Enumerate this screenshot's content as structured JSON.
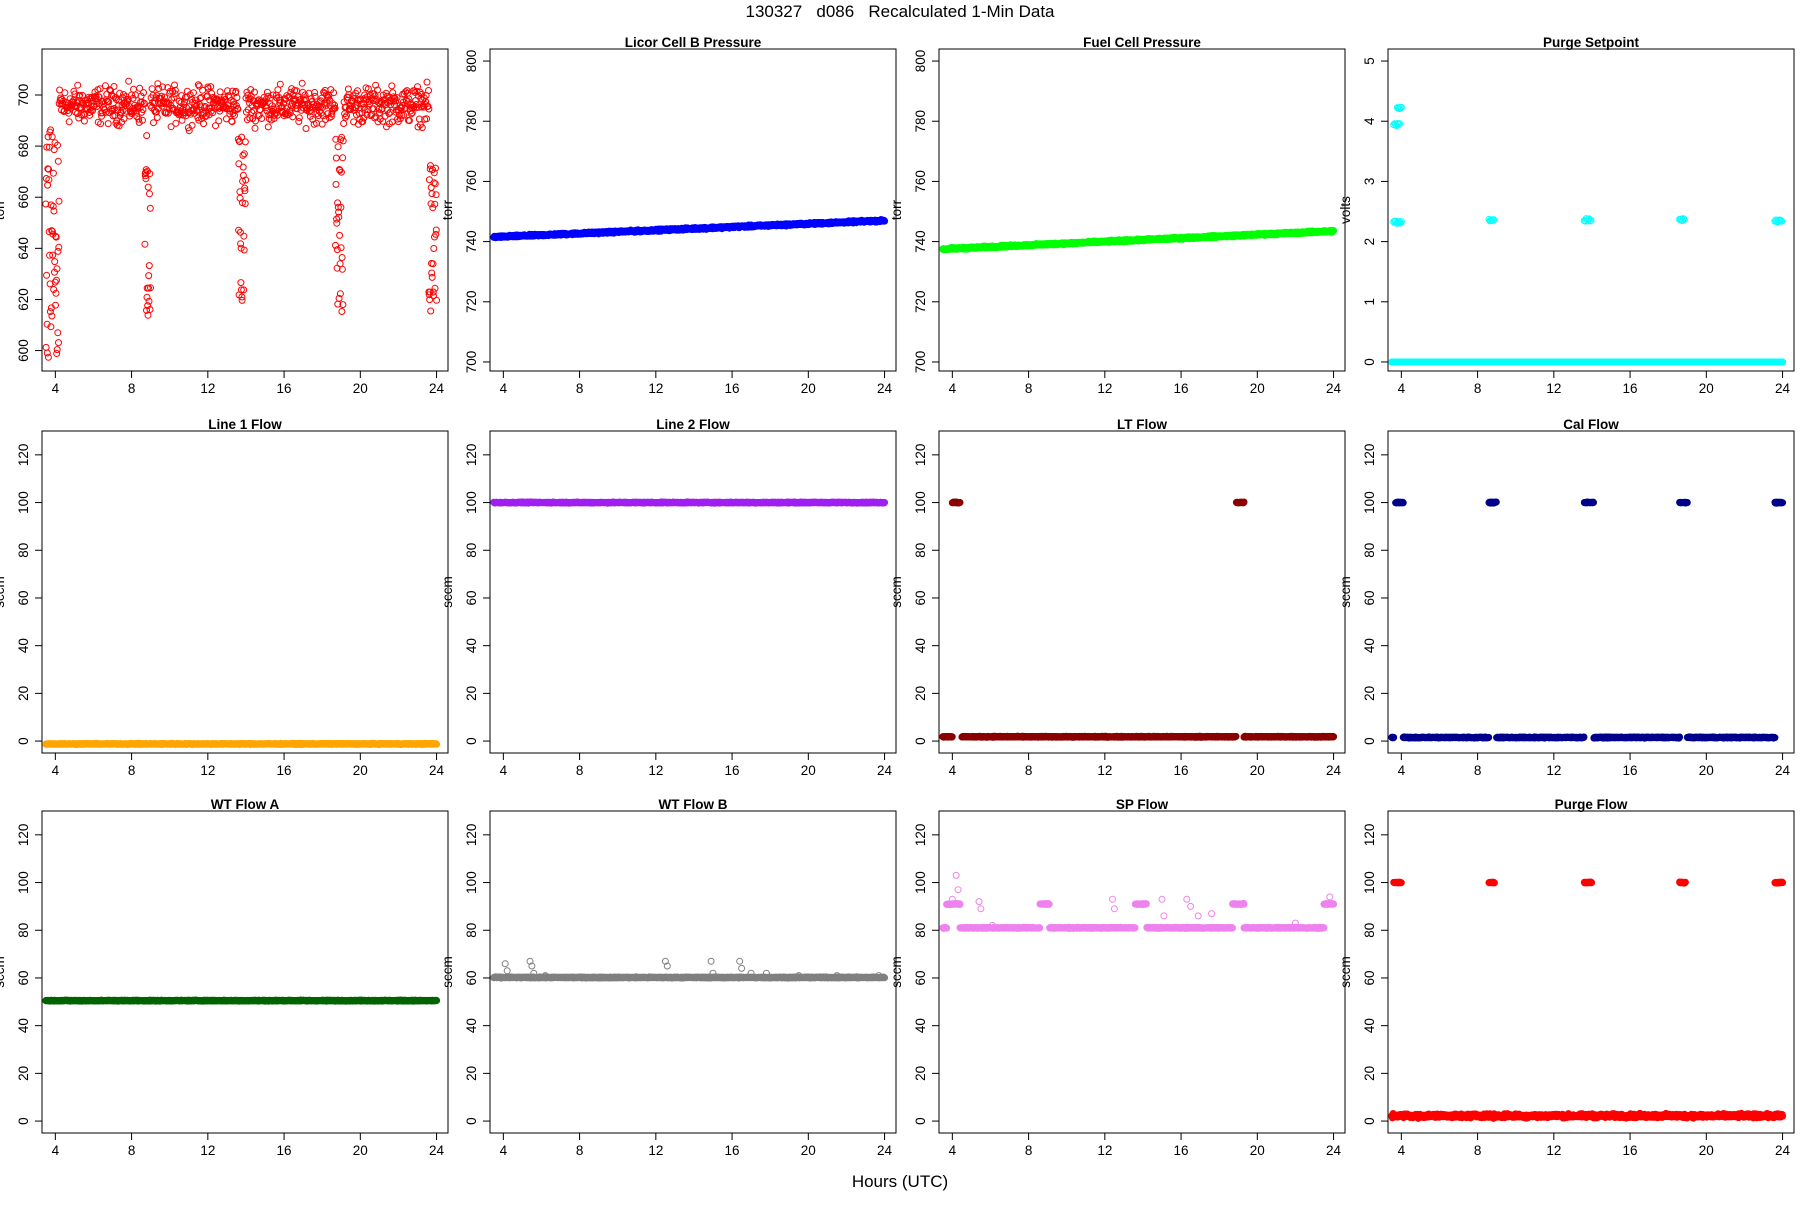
{
  "figure": {
    "title": "130327   d086   Recalculated 1-Min Data",
    "xlabel": "Hours (UTC)"
  },
  "chart_data": [
    {
      "type": "scatter",
      "title": "Fridge Pressure",
      "ylabel": "torr",
      "color": "#ff0000",
      "filled": false,
      "xlim": [
        3.3,
        24.6
      ],
      "ylim": [
        592,
        718
      ],
      "xticks": [
        4,
        8,
        12,
        16,
        20,
        24
      ],
      "yticks": [
        600,
        620,
        640,
        660,
        680,
        700
      ],
      "bands": [
        {
          "x0": 3.9,
          "x1": 24.0,
          "center": 696,
          "spread": 7
        }
      ],
      "drops": [
        {
          "x0": 3.5,
          "x1": 4.2,
          "ymin": 596,
          "ymax": 690
        },
        {
          "x0": 8.7,
          "x1": 9.0,
          "ymin": 613,
          "ymax": 685
        },
        {
          "x0": 13.6,
          "x1": 14.0,
          "ymin": 615,
          "ymax": 685
        },
        {
          "x0": 18.7,
          "x1": 19.1,
          "ymin": 615,
          "ymax": 685
        },
        {
          "x0": 23.6,
          "x1": 24.0,
          "ymin": 615,
          "ymax": 673
        }
      ]
    },
    {
      "type": "scatter",
      "title": "Licor Cell B Pressure",
      "ylabel": "torr",
      "color": "#0000ff",
      "filled": true,
      "xlim": [
        3.3,
        24.6
      ],
      "ylim": [
        697,
        804
      ],
      "xticks": [
        4,
        8,
        12,
        16,
        20,
        24
      ],
      "yticks": [
        700,
        720,
        740,
        760,
        780,
        800
      ],
      "trend": {
        "x0": 3.5,
        "x1": 24.0,
        "y0": 741.5,
        "y1": 747
      }
    },
    {
      "type": "scatter",
      "title": "Fuel Cell Pressure",
      "ylabel": "torr",
      "color": "#00ff00",
      "filled": true,
      "xlim": [
        3.3,
        24.6
      ],
      "ylim": [
        697,
        804
      ],
      "xticks": [
        4,
        8,
        12,
        16,
        20,
        24
      ],
      "yticks": [
        700,
        720,
        740,
        760,
        780,
        800
      ],
      "trend": {
        "x0": 3.5,
        "x1": 24.0,
        "y0": 737.5,
        "y1": 743.5
      }
    },
    {
      "type": "scatter",
      "title": "Purge Setpoint",
      "ylabel": "volts",
      "color": "#00ffff",
      "filled": false,
      "xlim": [
        3.3,
        24.6
      ],
      "ylim": [
        -0.15,
        5.2
      ],
      "xticks": [
        4,
        8,
        12,
        16,
        20,
        24
      ],
      "yticks": [
        0,
        1,
        2,
        3,
        4,
        5
      ],
      "baseline": {
        "x0": 3.5,
        "x1": 24.0,
        "y": 0.0
      },
      "clusters": [
        {
          "x0": 3.6,
          "x1": 4.0,
          "y": 2.32
        },
        {
          "x0": 3.6,
          "x1": 3.9,
          "y": 3.95
        },
        {
          "x0": 3.8,
          "x1": 4.0,
          "y": 4.22
        },
        {
          "x0": 8.6,
          "x1": 8.9,
          "y": 2.35
        },
        {
          "x0": 13.6,
          "x1": 14.0,
          "y": 2.36
        },
        {
          "x0": 18.6,
          "x1": 18.9,
          "y": 2.36
        },
        {
          "x0": 23.6,
          "x1": 24.0,
          "y": 2.35
        }
      ]
    },
    {
      "type": "scatter",
      "title": "Line 1 Flow",
      "ylabel": "sccm",
      "color": "#ffa500",
      "filled": true,
      "xlim": [
        3.3,
        24.6
      ],
      "ylim": [
        -5,
        130
      ],
      "xticks": [
        4,
        8,
        12,
        16,
        20,
        24
      ],
      "yticks": [
        0,
        20,
        40,
        60,
        80,
        100,
        120
      ],
      "segments": [
        {
          "x0": 3.5,
          "x1": 24.0,
          "y": -1.2
        }
      ]
    },
    {
      "type": "scatter",
      "title": "Line 2 Flow",
      "ylabel": "sccm",
      "color": "#a020f0",
      "filled": true,
      "xlim": [
        3.3,
        24.6
      ],
      "ylim": [
        -5,
        130
      ],
      "xticks": [
        4,
        8,
        12,
        16,
        20,
        24
      ],
      "yticks": [
        0,
        20,
        40,
        60,
        80,
        100,
        120
      ],
      "segments": [
        {
          "x0": 3.5,
          "x1": 24.0,
          "y": 100
        }
      ]
    },
    {
      "type": "scatter",
      "title": "LT Flow",
      "ylabel": "sccm",
      "color": "#8b0000",
      "filled": true,
      "xlim": [
        3.3,
        24.6
      ],
      "ylim": [
        -5,
        130
      ],
      "xticks": [
        4,
        8,
        12,
        16,
        20,
        24
      ],
      "yticks": [
        0,
        20,
        40,
        60,
        80,
        100,
        120
      ],
      "segments": [
        {
          "x0": 3.5,
          "x1": 4.0,
          "y": 1.8
        },
        {
          "x0": 4.5,
          "x1": 18.9,
          "y": 1.8
        },
        {
          "x0": 19.3,
          "x1": 24.0,
          "y": 1.8
        },
        {
          "x0": 4.0,
          "x1": 4.4,
          "y": 100
        },
        {
          "x0": 18.9,
          "x1": 19.3,
          "y": 100
        }
      ]
    },
    {
      "type": "scatter",
      "title": "Cal Flow",
      "ylabel": "sccm",
      "color": "#00008b",
      "filled": true,
      "xlim": [
        3.3,
        24.6
      ],
      "ylim": [
        -5,
        130
      ],
      "xticks": [
        4,
        8,
        12,
        16,
        20,
        24
      ],
      "yticks": [
        0,
        20,
        40,
        60,
        80,
        100,
        120
      ],
      "segments": [
        {
          "x0": 3.5,
          "x1": 3.6,
          "y": 1.5
        },
        {
          "x0": 4.1,
          "x1": 8.6,
          "y": 1.5
        },
        {
          "x0": 9.0,
          "x1": 13.6,
          "y": 1.5
        },
        {
          "x0": 14.1,
          "x1": 18.6,
          "y": 1.5
        },
        {
          "x0": 19.0,
          "x1": 23.6,
          "y": 1.5
        },
        {
          "x0": 3.7,
          "x1": 4.1,
          "y": 100
        },
        {
          "x0": 8.6,
          "x1": 9.0,
          "y": 100
        },
        {
          "x0": 13.6,
          "x1": 14.1,
          "y": 100
        },
        {
          "x0": 18.6,
          "x1": 19.0,
          "y": 100
        },
        {
          "x0": 23.6,
          "x1": 24.0,
          "y": 100
        }
      ]
    },
    {
      "type": "scatter",
      "title": "WT Flow A",
      "ylabel": "sccm",
      "color": "#006400",
      "filled": true,
      "xlim": [
        3.3,
        24.6
      ],
      "ylim": [
        -5,
        130
      ],
      "xticks": [
        4,
        8,
        12,
        16,
        20,
        24
      ],
      "yticks": [
        0,
        20,
        40,
        60,
        80,
        100,
        120
      ],
      "segments": [
        {
          "x0": 3.5,
          "x1": 24.0,
          "y": 50.5
        }
      ]
    },
    {
      "type": "scatter",
      "title": "WT Flow B",
      "ylabel": "sccm",
      "color": "#808080",
      "filled": true,
      "xlim": [
        3.3,
        24.6
      ],
      "ylim": [
        -5,
        130
      ],
      "xticks": [
        4,
        8,
        12,
        16,
        20,
        24
      ],
      "yticks": [
        0,
        20,
        40,
        60,
        80,
        100,
        120
      ],
      "segments": [
        {
          "x0": 3.5,
          "x1": 24.0,
          "y": 60.2
        }
      ],
      "outliers": [
        [
          4.1,
          66
        ],
        [
          4.2,
          63
        ],
        [
          5.4,
          67
        ],
        [
          5.5,
          65
        ],
        [
          5.6,
          62
        ],
        [
          6.2,
          61
        ],
        [
          12.5,
          67
        ],
        [
          12.6,
          65
        ],
        [
          14.9,
          67
        ],
        [
          15.0,
          62
        ],
        [
          16.4,
          67
        ],
        [
          16.5,
          64
        ],
        [
          17.0,
          62
        ],
        [
          17.8,
          62
        ],
        [
          19.5,
          61
        ],
        [
          21.5,
          61
        ],
        [
          23.7,
          61
        ]
      ]
    },
    {
      "type": "scatter",
      "title": "SP Flow",
      "ylabel": "sccm",
      "color": "#ee82ee",
      "filled": true,
      "xlim": [
        3.3,
        24.6
      ],
      "ylim": [
        -5,
        130
      ],
      "xticks": [
        4,
        8,
        12,
        16,
        20,
        24
      ],
      "yticks": [
        0,
        20,
        40,
        60,
        80,
        100,
        120
      ],
      "segments": [
        {
          "x0": 3.5,
          "x1": 3.7,
          "y": 81
        },
        {
          "x0": 4.4,
          "x1": 8.6,
          "y": 81
        },
        {
          "x0": 9.1,
          "x1": 13.6,
          "y": 81
        },
        {
          "x0": 14.2,
          "x1": 18.7,
          "y": 81
        },
        {
          "x0": 19.3,
          "x1": 23.5,
          "y": 81
        },
        {
          "x0": 3.7,
          "x1": 4.4,
          "y": 91
        },
        {
          "x0": 8.6,
          "x1": 9.1,
          "y": 91
        },
        {
          "x0": 13.6,
          "x1": 14.2,
          "y": 91
        },
        {
          "x0": 18.7,
          "x1": 19.3,
          "y": 91
        },
        {
          "x0": 23.5,
          "x1": 24.0,
          "y": 91
        }
      ],
      "outliers": [
        [
          4.2,
          103
        ],
        [
          4.3,
          97
        ],
        [
          4.0,
          93
        ],
        [
          5.4,
          92
        ],
        [
          5.5,
          89
        ],
        [
          6.1,
          82
        ],
        [
          12.4,
          93
        ],
        [
          12.5,
          89
        ],
        [
          15.0,
          93
        ],
        [
          15.1,
          86
        ],
        [
          16.3,
          93
        ],
        [
          16.5,
          90
        ],
        [
          16.9,
          86
        ],
        [
          17.6,
          87
        ],
        [
          22.0,
          83
        ],
        [
          23.8,
          94
        ],
        [
          23.9,
          91
        ]
      ]
    },
    {
      "type": "scatter",
      "title": "Purge Flow",
      "ylabel": "sccm",
      "color": "#ff0000",
      "filled": true,
      "xlim": [
        3.3,
        24.6
      ],
      "ylim": [
        -5,
        130
      ],
      "xticks": [
        4,
        8,
        12,
        16,
        20,
        24
      ],
      "yticks": [
        0,
        20,
        40,
        60,
        80,
        100,
        120
      ],
      "noisy_band": {
        "x0": 3.5,
        "x1": 24.0,
        "center": 2.2,
        "spread": 1.2
      },
      "segments": [
        {
          "x0": 3.6,
          "x1": 4.0,
          "y": 100
        },
        {
          "x0": 8.6,
          "x1": 8.9,
          "y": 100
        },
        {
          "x0": 13.6,
          "x1": 14.0,
          "y": 100
        },
        {
          "x0": 18.6,
          "x1": 18.9,
          "y": 100
        },
        {
          "x0": 23.6,
          "x1": 24.0,
          "y": 100
        }
      ]
    }
  ]
}
